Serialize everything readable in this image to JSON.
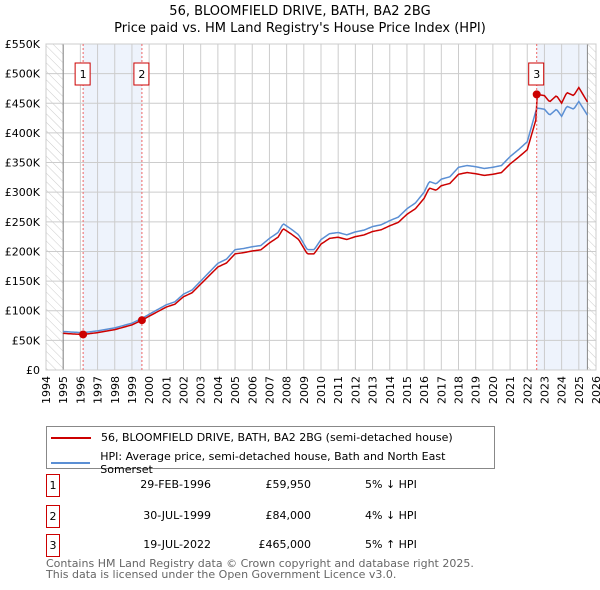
{
  "title": "56, BLOOMFIELD DRIVE, BATH, BA2 2BG",
  "subtitle": "Price paid vs. HM Land Registry's House Price Index (HPI)",
  "chart_data": {
    "type": "line",
    "title": "56, BLOOMFIELD DRIVE, BATH, BA2 2BG",
    "subtitle": "Price paid vs. HM Land Registry's House Price Index (HPI)",
    "xlim": [
      1994,
      2026
    ],
    "ylim": [
      0,
      550000
    ],
    "x_ticks": [
      "1994",
      "1995",
      "1996",
      "1997",
      "1998",
      "1999",
      "2000",
      "2001",
      "2002",
      "2003",
      "2004",
      "2005",
      "2006",
      "2007",
      "2008",
      "2009",
      "2010",
      "2011",
      "2012",
      "2013",
      "2014",
      "2015",
      "2016",
      "2017",
      "2018",
      "2019",
      "2020",
      "2021",
      "2022",
      "2023",
      "2024",
      "2025",
      "2026"
    ],
    "y_ticks": [
      "£0",
      "£50K",
      "£100K",
      "£150K",
      "£200K",
      "£250K",
      "£300K",
      "£350K",
      "£400K",
      "£450K",
      "£500K",
      "£550K"
    ],
    "grid": true,
    "hpi_series": {
      "name": "HPI: Average price, semi-detached house, Bath and North East Somerset",
      "color": "#5b8fd4",
      "x": [
        1995,
        1995.5,
        1996.16,
        1997,
        1998,
        1999,
        1999.58,
        2000,
        2001,
        2001.5,
        2002,
        2002.5,
        2003,
        2003.5,
        2004,
        2004.5,
        2005,
        2005.5,
        2006,
        2006.5,
        2007,
        2007.5,
        2007.8,
        2008.3,
        2008.7,
        2009.2,
        2009.6,
        2010,
        2010.5,
        2011,
        2011.5,
        2012,
        2012.5,
        2013,
        2013.5,
        2014,
        2014.5,
        2015,
        2015.5,
        2016,
        2016.3,
        2016.7,
        2017,
        2017.5,
        2018,
        2018.5,
        2019,
        2019.5,
        2020,
        2020.5,
        2021,
        2021.5,
        2022,
        2022.55,
        2023,
        2023.3,
        2023.7,
        2024,
        2024.3,
        2024.7,
        2025,
        2025.5
      ],
      "y": [
        65000,
        64000,
        63000,
        66000,
        71000,
        79000,
        87000,
        94000,
        110000,
        115000,
        128000,
        135000,
        150000,
        165000,
        180000,
        187000,
        203000,
        205000,
        208000,
        210000,
        222000,
        232000,
        247000,
        237000,
        228000,
        203000,
        203000,
        220000,
        230000,
        232000,
        228000,
        233000,
        236000,
        242000,
        245000,
        252000,
        258000,
        272000,
        282000,
        300000,
        318000,
        314000,
        322000,
        326000,
        342000,
        345000,
        343000,
        340000,
        342000,
        345000,
        360000,
        372000,
        385000,
        442000,
        440000,
        430000,
        440000,
        428000,
        445000,
        440000,
        453000,
        430000
      ]
    },
    "property_series": {
      "name": "56, BLOOMFIELD DRIVE, BATH, BA2 2BG (semi-detached house)",
      "color": "#cc0000"
    },
    "sales": [
      {
        "id": "1",
        "x": 1996.16,
        "date": "29-FEB-1996",
        "price": "£59,950",
        "value": 59950,
        "hpi": "5% ↓ HPI"
      },
      {
        "id": "2",
        "x": 1999.58,
        "date": "30-JUL-1999",
        "price": "£84,000",
        "value": 84000,
        "hpi": "4% ↓ HPI"
      },
      {
        "id": "3",
        "x": 2022.55,
        "date": "19-JUL-2022",
        "price": "£465,000",
        "value": 465000,
        "hpi": "5% ↑ HPI"
      }
    ]
  },
  "footer": {
    "line1": "Contains HM Land Registry data © Crown copyright and database right 2025.",
    "line2": "This data is licensed under the Open Government Licence v3.0."
  }
}
